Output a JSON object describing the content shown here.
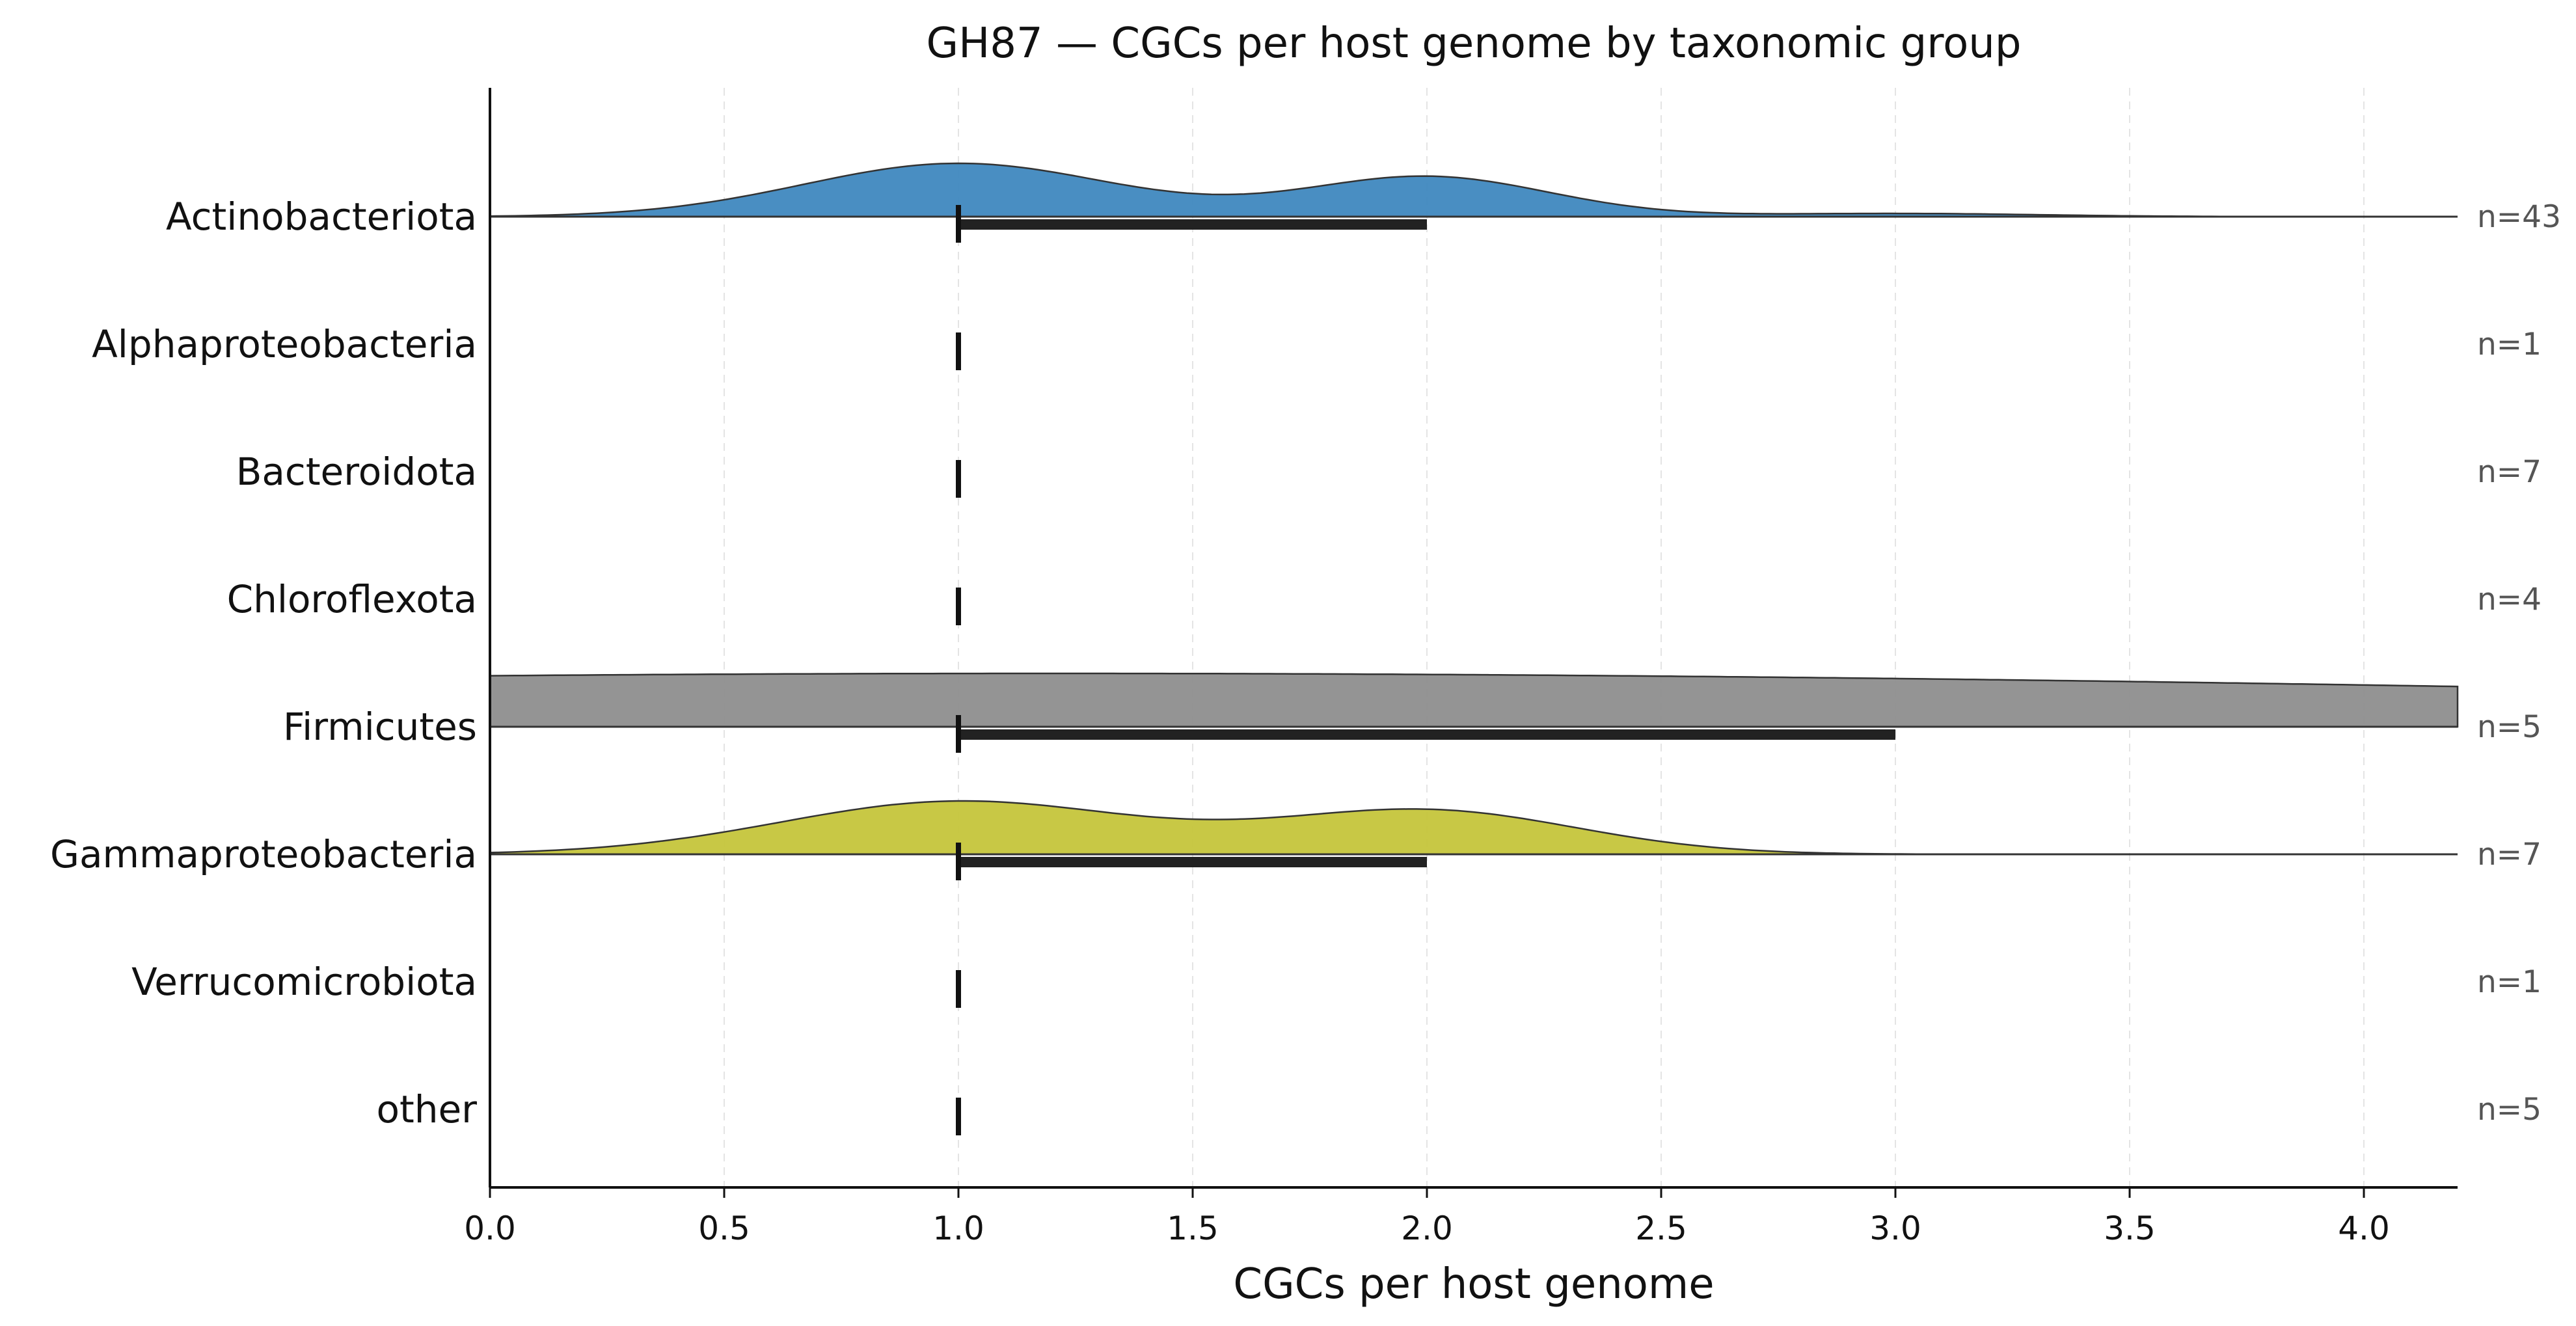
{
  "chart_data": {
    "type": "ridgeline",
    "title": "GH87 — CGCs per host genome by taxonomic group",
    "xlabel": "CGCs per host genome",
    "xlim": [
      0.0,
      4.2
    ],
    "xticks": [
      "0.0",
      "0.5",
      "1.0",
      "1.5",
      "2.0",
      "2.5",
      "3.0",
      "3.5",
      "4.0"
    ],
    "grid": "x, dashed",
    "legend": "none",
    "groups": [
      {
        "name": "Actinobacteriota",
        "n_label": "n=43",
        "median": 1.0,
        "q1": 1.0,
        "q3": 2.0,
        "color": "#3f88bf",
        "modes": [
          {
            "center": 1.0,
            "height": 1.0,
            "sd": 0.33
          },
          {
            "center": 2.0,
            "height": 0.75,
            "sd": 0.26
          },
          {
            "center": 3.0,
            "height": 0.06,
            "sd": 0.3
          }
        ]
      },
      {
        "name": "Alphaproteobacteria",
        "n_label": "n=1",
        "median": 1.0,
        "q1": 1.0,
        "q3": 1.0,
        "color": "#e07b39",
        "modes": []
      },
      {
        "name": "Bacteroidota",
        "n_label": "n=7",
        "median": 1.0,
        "q1": 1.0,
        "q3": 1.0,
        "color": "#4caa4c",
        "modes": []
      },
      {
        "name": "Chloroflexota",
        "n_label": "n=4",
        "median": 1.0,
        "q1": 1.0,
        "q3": 1.0,
        "color": "#c44e52",
        "modes": []
      },
      {
        "name": "Firmicutes",
        "n_label": "n=5",
        "median": 1.0,
        "q1": 1.0,
        "q3": 3.0,
        "color": "#8e8e8e",
        "modes": [
          {
            "center": 1.2,
            "height": 1.0,
            "sd": 4.0
          }
        ]
      },
      {
        "name": "Gammaproteobacteria",
        "n_label": "n=7",
        "median": 1.0,
        "q1": 1.0,
        "q3": 2.0,
        "color": "#c5c53b",
        "modes": [
          {
            "center": 1.0,
            "height": 1.0,
            "sd": 0.38
          },
          {
            "center": 2.0,
            "height": 0.82,
            "sd": 0.32
          }
        ]
      },
      {
        "name": "Verrucomicrobiota",
        "n_label": "n=1",
        "median": 1.0,
        "q1": 1.0,
        "q3": 1.0,
        "color": "#8c6bb1",
        "modes": []
      },
      {
        "name": "other",
        "n_label": "n=5",
        "median": 1.0,
        "q1": 1.0,
        "q3": 1.0,
        "color": "#7f7f7f",
        "modes": []
      }
    ]
  }
}
